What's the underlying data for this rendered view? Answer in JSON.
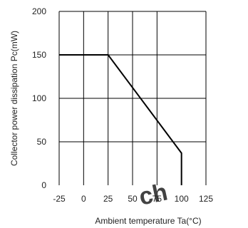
{
  "chart_data": {
    "type": "line",
    "title": "",
    "xlabel": "Ambient temperature Ta(°C)",
    "ylabel": "Collector power dissipation Pc(mW)",
    "xlim": [
      -25,
      125
    ],
    "ylim": [
      0,
      200
    ],
    "x_ticks": [
      -25,
      0,
      25,
      50,
      75,
      100,
      125
    ],
    "y_ticks": [
      0,
      50,
      100,
      150,
      200
    ],
    "x_tick_labels": [
      "-25",
      "0",
      "25",
      "50",
      "75",
      "100",
      "125"
    ],
    "y_tick_labels": [
      "0",
      "50",
      "100",
      "150",
      "200"
    ],
    "grid": true,
    "legend": "none",
    "series": [
      {
        "x": [
          -25,
          25,
          100,
          100
        ],
        "y": [
          150,
          150,
          37,
          0
        ]
      }
    ],
    "colors": {
      "line": "#000000",
      "grid": "#000000",
      "watermark": "#e0231f"
    }
  },
  "watermark": {
    "text": "ch"
  }
}
